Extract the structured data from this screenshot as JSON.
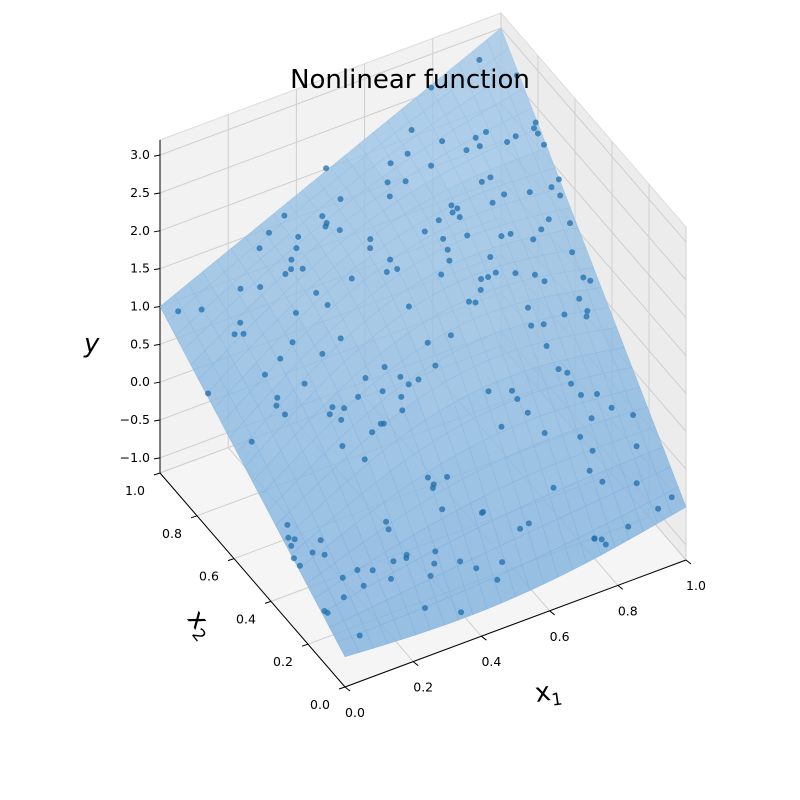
{
  "chart_data": {
    "type": "surface3d+scatter",
    "title": "Nonlinear function",
    "xlabel": "x",
    "xlabel_sub": "1",
    "ylabel": "x",
    "ylabel_sub": "2",
    "zlabel": "y",
    "xlim": [
      0,
      1
    ],
    "ylim": [
      0,
      1
    ],
    "zlim": [
      -1.2,
      3.2
    ],
    "x_ticks": [
      "0.0",
      "0.2",
      "0.4",
      "0.6",
      "0.8",
      "1.0"
    ],
    "y_ticks": [
      "0.0",
      "0.2",
      "0.4",
      "0.6",
      "0.8",
      "1.0"
    ],
    "z_ticks": [
      "−1.0",
      "−0.5",
      "0.0",
      "0.5",
      "1.0",
      "1.5",
      "2.0",
      "2.5",
      "3.0"
    ],
    "z_tick_values": [
      -1.0,
      -0.5,
      0.0,
      0.5,
      1.0,
      1.5,
      2.0,
      2.5,
      3.0
    ],
    "surface_color": "#7fb2de",
    "point_color": "#1f6fae",
    "grid": true,
    "surface": {
      "corners": {
        "x0_y0": -0.8,
        "x1_y0": -0.5,
        "x0_y1": 1.0,
        "x1_y1": 3.0
      }
    },
    "n_points": 200
  }
}
